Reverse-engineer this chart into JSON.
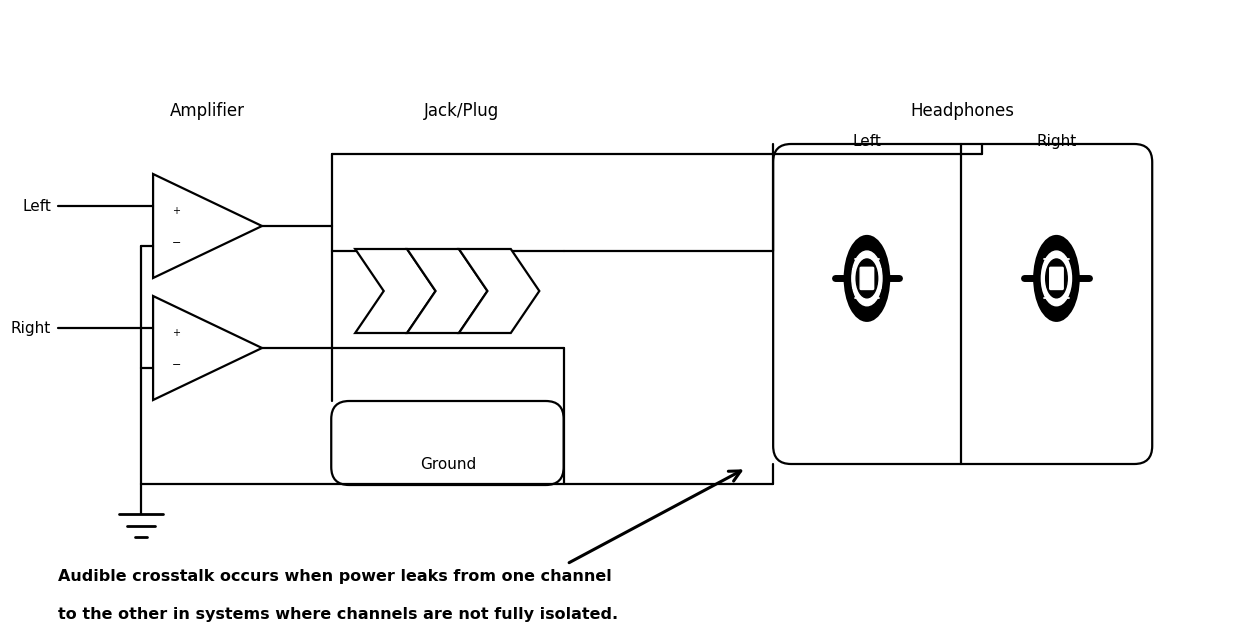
{
  "bg_color": "#ffffff",
  "line_color": "#000000",
  "label_amplifier": "Amplifier",
  "label_jackplug": "Jack/Plug",
  "label_headphones": "Headphones",
  "label_left_input": "Left",
  "label_right_input": "Right",
  "label_ground": "Ground",
  "label_left_hp": "Left",
  "label_right_hp": "Right",
  "caption_line1": "Audible crosstalk occurs when power leaks from one channel",
  "caption_line2": "to the other in systems where channels are not fully isolated.",
  "fig_width": 12.4,
  "fig_height": 6.36
}
